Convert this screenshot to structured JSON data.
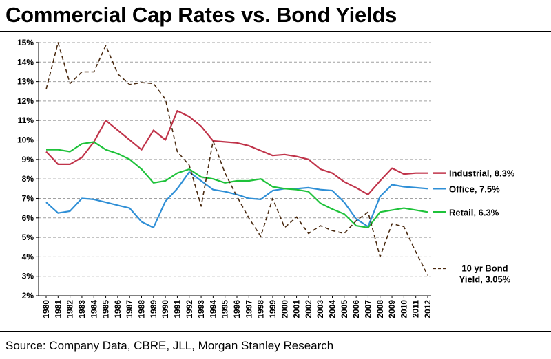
{
  "title": "Commercial Cap Rates vs. Bond Yields",
  "source": "Source: Company Data, CBRE, JLL, Morgan Stanley Research",
  "chart_data": {
    "type": "line",
    "x": [
      1980,
      1981,
      1982,
      1983,
      1984,
      1985,
      1986,
      1987,
      1988,
      1989,
      1990,
      1991,
      1992,
      1993,
      1994,
      1995,
      1996,
      1997,
      1998,
      1999,
      2000,
      2001,
      2002,
      2003,
      2004,
      2005,
      2006,
      2007,
      2008,
      2009,
      2010,
      2011,
      2012
    ],
    "x_tick_labels": [
      "1980",
      "1981",
      "1982",
      "1983",
      "1984",
      "1985",
      "1986",
      "1987",
      "1988",
      "1989",
      "1990",
      "1991",
      "1992",
      "1993",
      "1994",
      "1995",
      "1996",
      "1997",
      "1998",
      "1999",
      "2000",
      "2001",
      "2002",
      "2003",
      "2004",
      "2005",
      "2006",
      "2007",
      "2008",
      "2009",
      "2010",
      "2011",
      "2012"
    ],
    "ylim": [
      2,
      15
    ],
    "y_ticks": [
      2,
      3,
      4,
      5,
      6,
      7,
      8,
      9,
      10,
      11,
      12,
      13,
      14,
      15
    ],
    "y_tick_labels": [
      "2%",
      "3%",
      "4%",
      "5%",
      "6%",
      "7%",
      "8%",
      "9%",
      "10%",
      "11%",
      "12%",
      "13%",
      "14%",
      "15%"
    ],
    "grid": "horizontal-dashed",
    "legend": "right-inline",
    "series": [
      {
        "name": "Industrial, 8.3%",
        "color": "#c0344a",
        "style": "solid",
        "values": [
          9.4,
          8.75,
          8.75,
          9.1,
          9.9,
          11.0,
          10.5,
          10.0,
          9.5,
          10.5,
          10.0,
          11.5,
          11.2,
          10.7,
          9.95,
          9.9,
          9.85,
          9.7,
          9.45,
          9.2,
          9.25,
          9.15,
          9.0,
          8.5,
          8.3,
          7.85,
          7.55,
          7.2,
          7.9,
          8.55,
          8.25,
          8.3,
          8.3
        ]
      },
      {
        "name": "Office, 7.5%",
        "color": "#2f8fd6",
        "style": "solid",
        "values": [
          6.8,
          6.25,
          6.35,
          7.0,
          6.95,
          6.8,
          6.65,
          6.5,
          5.8,
          5.5,
          6.85,
          7.5,
          8.35,
          7.9,
          7.45,
          7.35,
          7.2,
          7.0,
          6.95,
          7.4,
          7.5,
          7.5,
          7.55,
          7.45,
          7.4,
          6.8,
          5.95,
          5.55,
          7.1,
          7.7,
          7.6,
          7.55,
          7.5
        ]
      },
      {
        "name": "Retail, 6.3%",
        "color": "#1ec23a",
        "style": "solid",
        "values": [
          9.5,
          9.5,
          9.4,
          9.8,
          9.9,
          9.5,
          9.3,
          9.0,
          8.5,
          7.8,
          7.9,
          8.3,
          8.5,
          8.1,
          8.0,
          7.8,
          7.9,
          7.9,
          8.0,
          7.6,
          7.5,
          7.45,
          7.35,
          6.75,
          6.45,
          6.2,
          5.6,
          5.5,
          6.3,
          6.4,
          6.5,
          6.4,
          6.3
        ]
      },
      {
        "name": "10 yr Bond Yield, 3.05%",
        "name_lines": [
          "10 yr Bond",
          "Yield, 3.05%"
        ],
        "color": "#4a2a10",
        "style": "dashed",
        "values": [
          12.6,
          15.0,
          12.9,
          13.5,
          13.5,
          14.85,
          13.4,
          12.85,
          12.95,
          12.9,
          12.1,
          9.4,
          8.7,
          6.6,
          9.95,
          8.3,
          7.1,
          6.0,
          5.05,
          7.0,
          5.5,
          6.05,
          5.2,
          5.6,
          5.35,
          5.2,
          5.85,
          6.3,
          4.0,
          5.7,
          5.55,
          4.25,
          3.05
        ]
      }
    ]
  }
}
